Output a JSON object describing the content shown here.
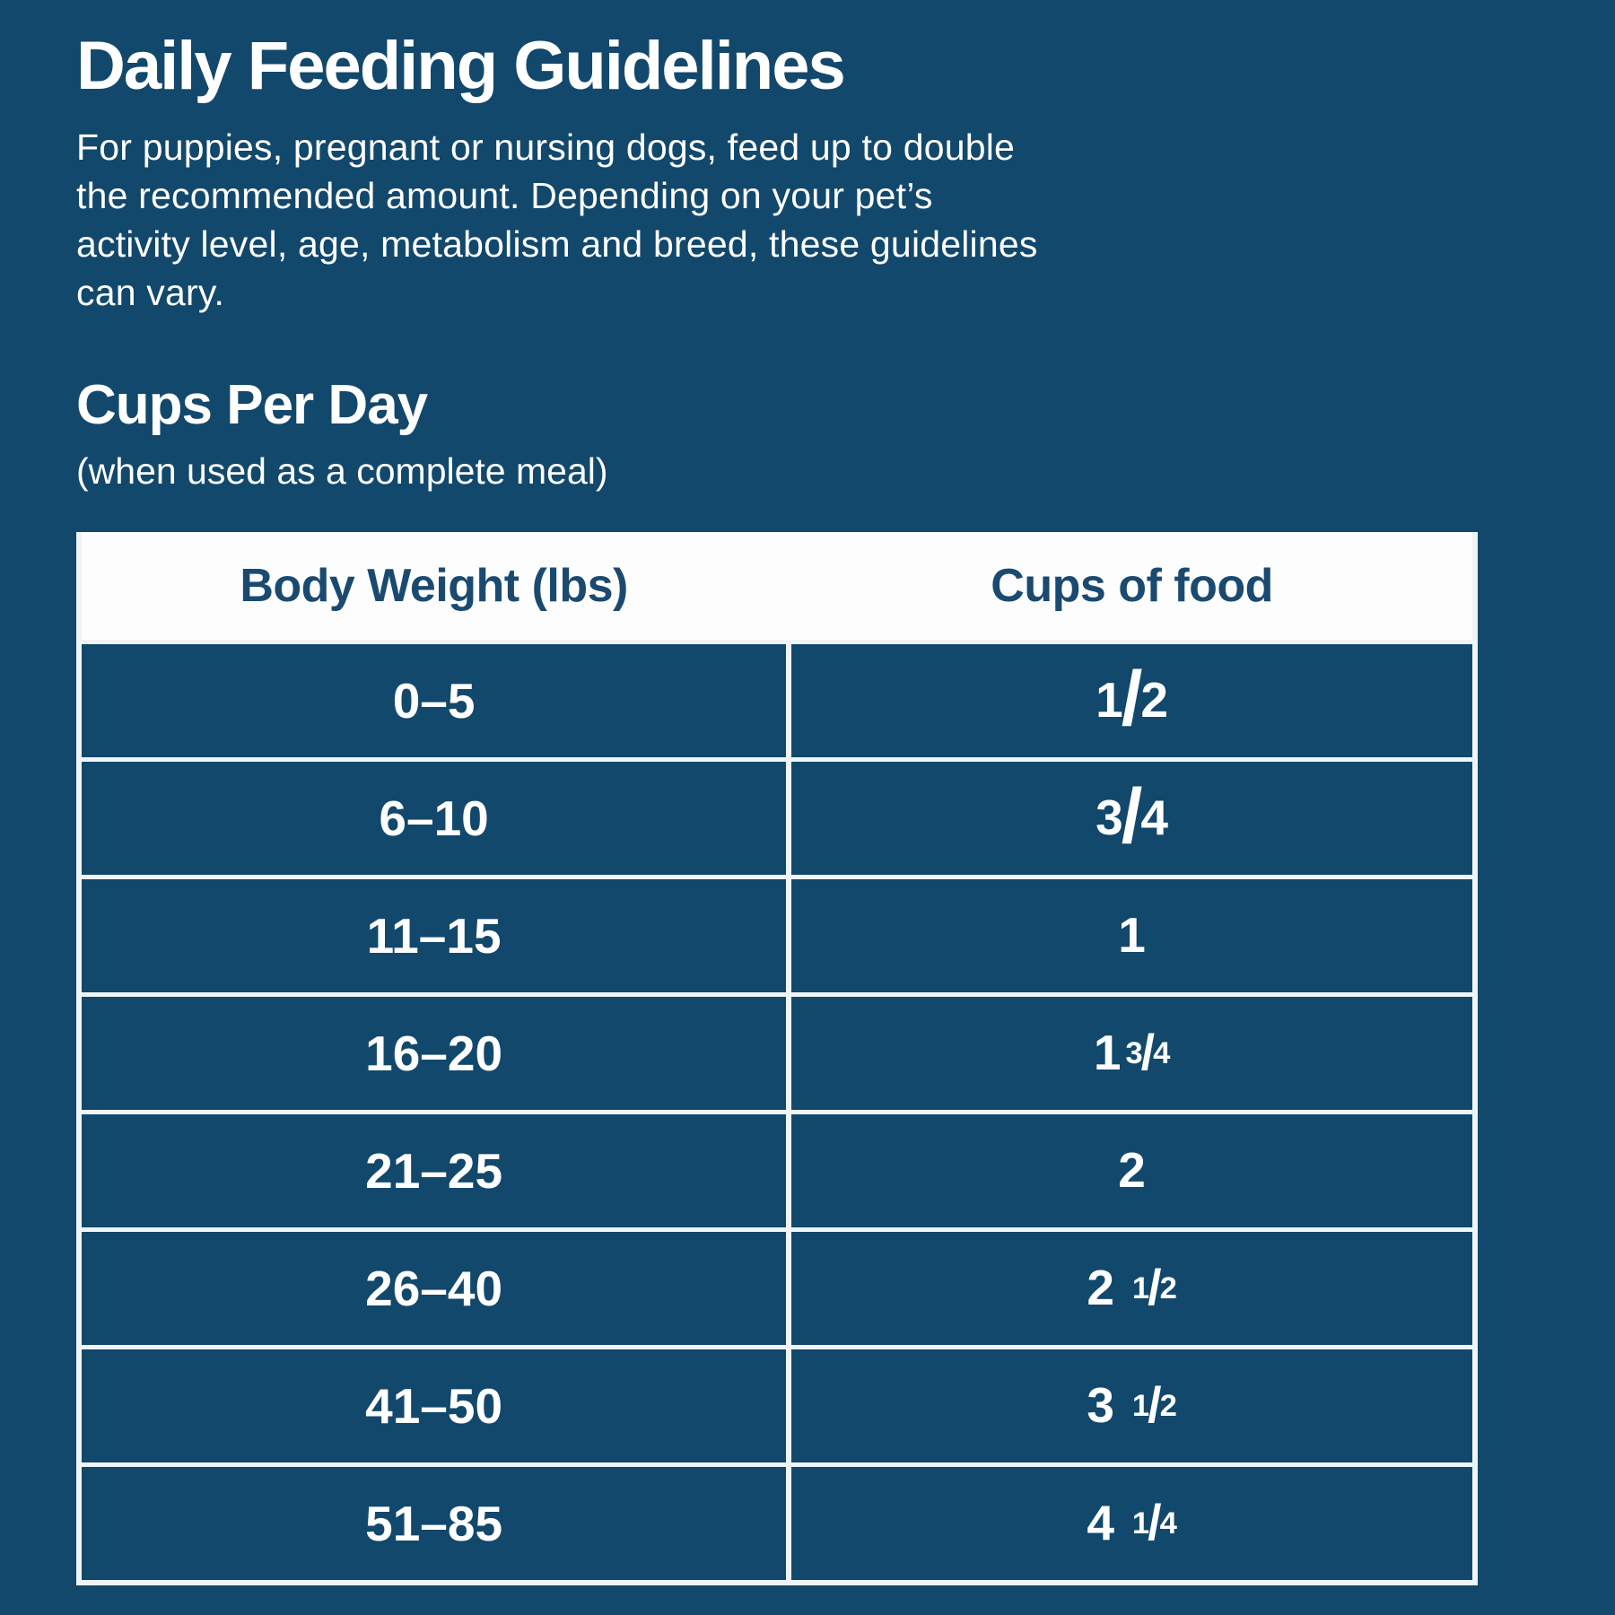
{
  "colors": {
    "background": "#12486C",
    "text": "#FFFFFF",
    "header_bg": "#FDFDFE",
    "header_text": "#1B4A70",
    "cell_bg": "#12486C",
    "border": "#EFF5F7"
  },
  "header": {
    "title": "Daily Feeding Guidelines"
  },
  "intro": {
    "lines": [
      "For puppies, pregnant or nursing dogs, feed up to double",
      "the recommended amount. Depending on your pet’s",
      "activity level, age, metabolism and breed, these guidelines",
      "can vary."
    ]
  },
  "section": {
    "title": "Cups Per Day",
    "subtitle": "(when used as a complete meal)"
  },
  "table": {
    "fraction_slash": "/",
    "columns": [
      "Body Weight (lbs)",
      "Cups of food"
    ],
    "rows": [
      {
        "weight": "0–5",
        "cups": {
          "whole": "",
          "num": "1",
          "den": "2",
          "size": "large",
          "spaced": false
        }
      },
      {
        "weight": "6–10",
        "cups": {
          "whole": "",
          "num": "3",
          "den": "4",
          "size": "large",
          "spaced": false
        }
      },
      {
        "weight": "11–15",
        "cups": {
          "whole": "1",
          "num": "",
          "den": "",
          "size": "",
          "spaced": false
        }
      },
      {
        "weight": "16–20",
        "cups": {
          "whole": "1",
          "num": "3",
          "den": "4",
          "size": "small",
          "spaced": false
        }
      },
      {
        "weight": "21–25",
        "cups": {
          "whole": "2",
          "num": "",
          "den": "",
          "size": "",
          "spaced": false
        }
      },
      {
        "weight": "26–40",
        "cups": {
          "whole": "2",
          "num": "1",
          "den": "2",
          "size": "small",
          "spaced": true
        }
      },
      {
        "weight": "41–50",
        "cups": {
          "whole": "3",
          "num": "1",
          "den": "2",
          "size": "small",
          "spaced": true
        }
      },
      {
        "weight": "51–85",
        "cups": {
          "whole": "4",
          "num": "1",
          "den": "4",
          "size": "small",
          "spaced": true
        }
      }
    ]
  }
}
